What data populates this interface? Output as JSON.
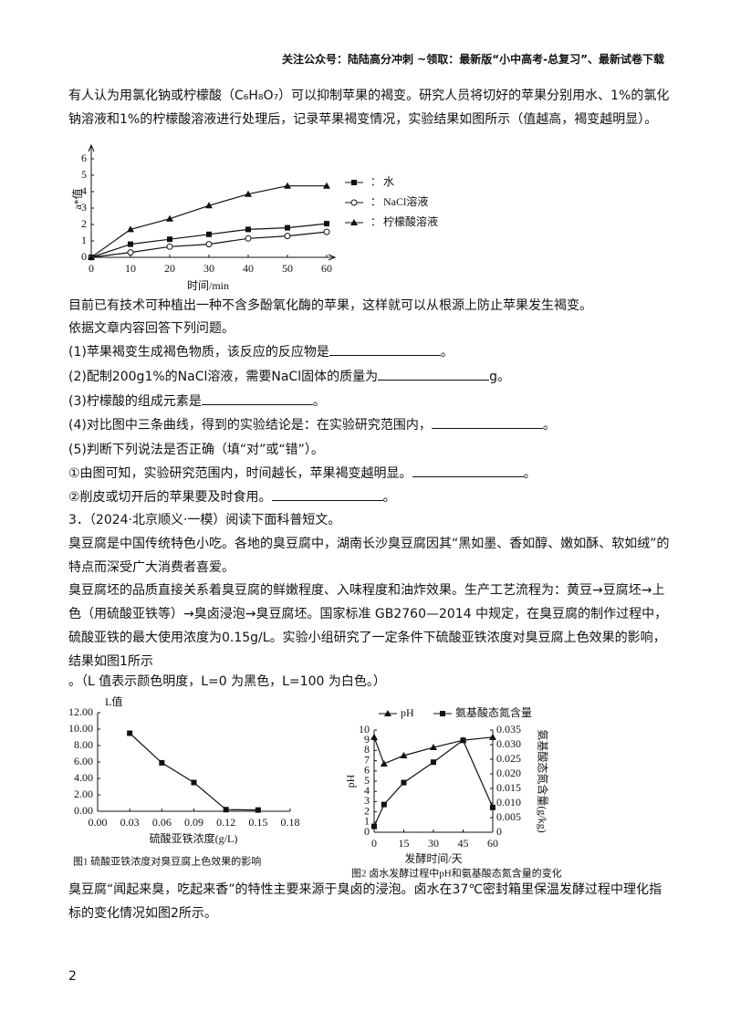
{
  "header": "关注公众号：陆陆高分冲刺 ~领取：最新版“小中高考-总复习”、最新试卷下载",
  "paragraphs": [
    "有人认为用氯化钠或柠檬酸（C₆H₈O₇）可以抑制苹果的褐变。研究人员将切好的苹果分别用水、1%的氯化钠溶液和1%的柠檬酸溶液进行处理后，记录苹果褐变情况，实验结果如图所示（值越高，褐变越明显）。",
    "目前已有技术可种植出一种不含多酚氧化酶的苹果，这样就可以从根源上防止苹果发生褐变。",
    "依据文章内容回答下列问题。",
    "臭豆腐是中国传统特色小吃。各地的臭豆腐中，湖南长沙臭豆腐因其“黑如墨、香如醇、嫩如酥、软如绒”的特点而深受广大消费者喜爱。",
    "臭豆腐坯的品质直接关系着臭豆腐的鲜嫩程度、入味程度和油炸效果。生产工艺流程为：黄豆→豆腐坯→上色（用硫酸亚铁等）→臭卤浸泡→臭豆腐坯。国家标准 GB2760—2014 中规定，在臭豆腐的制作过程中，硫酸亚铁的最大使用浓度为0.15g/L。实验小组研究了一定条件下硫酸亚铁浓度对臭豆腐上色效果的影响，结果如图1所示",
    "。（L 值表示颜色明度，L=0 为黑色，L=100 为白色。）",
    "臭豆腐“闻起来臭，吃起来香”的特性主要来源于臭卤的浸泡。卤水在37℃密封箱里保温发酵过程中理化指标的变化情况如图2所示。"
  ],
  "questions": [
    {
      "before": "(1)苹果褐变生成褐色物质，该反应的反应物是",
      "after": "。"
    },
    {
      "before": "(2)配制200g1%的NaCl溶液，需要NaCl固体的质量为",
      "after": "g。"
    },
    {
      "before": "(3)柠檬酸的组成元素是",
      "after": "。"
    },
    {
      "before": "(4)对比图中三条曲线，得到的实验结论是：在实验研究范围内，",
      "after": "。"
    },
    "(5)判断下列说法是否正确（填“对”或“错”）。",
    {
      "before": "①由图可知，实验研究范围内，时间越长，苹果褐变越明显。",
      "after": "。"
    },
    {
      "before": "②削皮或切开后的苹果要及时食用。",
      "after": "。"
    }
  ],
  "section_title": "3．（2024·北京顺义·一模）阅读下面科普短文。",
  "chart_data": [
    {
      "type": "line",
      "ylabel": "a*值",
      "xlabel": "时间/min",
      "x": [
        0,
        10,
        20,
        30,
        40,
        50,
        60
      ],
      "xlim": [
        0,
        60
      ],
      "xticks": [
        0,
        10,
        20,
        30,
        40,
        50,
        60
      ],
      "ylim": [
        0,
        6
      ],
      "yticks": [
        0,
        1,
        2,
        3,
        4,
        5,
        6
      ],
      "legend": "right",
      "series": [
        {
          "name": "水",
          "color": "#111111",
          "marker": "square",
          "values": [
            0,
            0.8,
            1.1,
            1.4,
            1.7,
            1.8,
            2.05
          ]
        },
        {
          "name": "NaCl溶液",
          "color": "#111111",
          "marker": "circle",
          "values": [
            0,
            0.3,
            0.65,
            0.8,
            1.15,
            1.3,
            1.55
          ]
        },
        {
          "name": "柠檬酸溶液",
          "color": "#111111",
          "marker": "triangle",
          "values": [
            0,
            1.7,
            2.35,
            3.15,
            3.85,
            4.35,
            4.35
          ]
        }
      ]
    },
    {
      "type": "line",
      "ylabel": "L值",
      "xlabel": "硫酸亚铁浓度(g/L)",
      "caption": "图1 硫酸亚铁浓度对臭豆腐上色效果的影响",
      "x": [
        0.03,
        0.06,
        0.09,
        0.12,
        0.15
      ],
      "xlim": [
        0,
        0.18
      ],
      "xticks": [
        {
          "value": 0,
          "label": "0.00"
        },
        0.03,
        0.06,
        0.09,
        0.12,
        0.15,
        0.18
      ],
      "ylim": [
        0,
        12
      ],
      "yticks": [
        {
          "value": 0,
          "label": "0.00"
        },
        {
          "value": 2,
          "label": "2.00"
        },
        {
          "value": 4,
          "label": "4.00"
        },
        {
          "value": 6,
          "label": "6.00"
        },
        {
          "value": 8,
          "label": "8.00"
        },
        {
          "value": 10,
          "label": "10.00"
        },
        {
          "value": 12,
          "label": "12.00"
        }
      ],
      "series": [
        {
          "color": "#111111",
          "marker": "square",
          "values": [
            9.5,
            5.9,
            3.5,
            0.2,
            0.15
          ]
        }
      ]
    },
    {
      "type": "line",
      "ylabel": "pH",
      "y2label": "氨基酸态氮含量(g/kg)",
      "xlabel": "发酵时间/天",
      "caption": "图2 卤水发酵过程中pH和氨基酸态氮含量的变化",
      "x": [
        0,
        5,
        15,
        30,
        45,
        60
      ],
      "xlim": [
        0,
        60
      ],
      "xticks": [
        0,
        15,
        30,
        45,
        60
      ],
      "ylim": [
        0,
        10
      ],
      "yticks": [
        0,
        1,
        2,
        3,
        4,
        5,
        6,
        7,
        8,
        9,
        10
      ],
      "y2lim": [
        0,
        0.035
      ],
      "y2ticks": [
        0,
        0.005,
        {
          "value": 0.01,
          "label": "0.010"
        },
        0.015,
        {
          "value": 0.02,
          "label": "0.020"
        },
        0.025,
        {
          "value": 0.03,
          "label": "0.030"
        },
        0.035
      ],
      "legend": "top",
      "series": [
        {
          "name": "pH",
          "color": "#111111",
          "marker": "triangle",
          "values": [
            9.3,
            6.7,
            7.5,
            8.3,
            9.0,
            9.3
          ]
        },
        {
          "name": "氨基酸态氮含量",
          "color": "#111111",
          "marker": "square",
          "axis": "y2",
          "values": [
            0.002,
            0.0095,
            0.017,
            0.024,
            0.0315,
            0.0085
          ]
        }
      ]
    }
  ],
  "page_number": "2"
}
